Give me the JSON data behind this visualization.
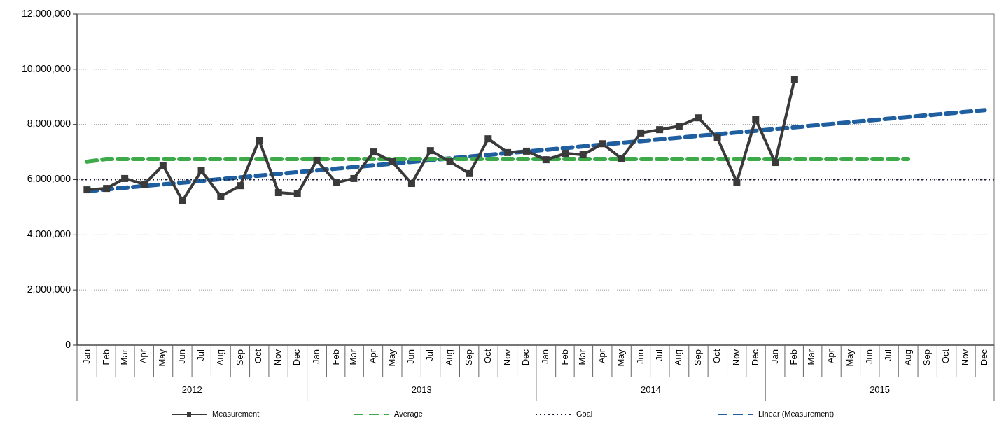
{
  "chart_data": {
    "type": "line",
    "x": [
      "2012-01",
      "2012-02",
      "2012-03",
      "2012-04",
      "2012-05",
      "2012-06",
      "2012-07",
      "2012-08",
      "2012-09",
      "2012-10",
      "2012-11",
      "2012-12",
      "2013-01",
      "2013-02",
      "2013-03",
      "2013-04",
      "2013-05",
      "2013-06",
      "2013-07",
      "2013-08",
      "2013-09",
      "2013-10",
      "2013-11",
      "2013-12",
      "2014-01",
      "2014-02",
      "2014-03",
      "2014-04",
      "2014-05",
      "2014-06",
      "2014-07",
      "2014-08",
      "2014-09",
      "2014-10",
      "2014-11",
      "2014-12",
      "2015-01",
      "2015-02"
    ],
    "series": [
      {
        "name": "Measurement",
        "color": "#3a3a3a",
        "marker": "square",
        "line_style": "solid",
        "values": [
          5630000,
          5680000,
          6040000,
          5830000,
          6520000,
          5230000,
          6320000,
          5400000,
          5780000,
          7430000,
          5530000,
          5480000,
          6700000,
          5890000,
          6040000,
          7000000,
          6650000,
          5860000,
          7050000,
          6650000,
          6220000,
          7480000,
          6980000,
          7030000,
          6720000,
          6950000,
          6900000,
          7300000,
          6770000,
          7690000,
          7810000,
          7940000,
          8240000,
          7510000,
          5910000,
          8190000,
          6620000,
          9640000
        ]
      },
      {
        "name": "Average",
        "color": "#3daa4a",
        "marker": "none",
        "line_style": "dashed",
        "x": [
          "2012-01",
          "2012-02",
          "2015-08"
        ],
        "values": [
          6650000,
          6750000,
          6750000
        ]
      },
      {
        "name": "Goal",
        "color": "#1a1a3a",
        "marker": "none",
        "line_style": "dotted",
        "x": [
          "2011-12-16",
          "2015-12-16"
        ],
        "values": [
          6000000,
          6000000
        ]
      },
      {
        "name": "Linear (Measurement)",
        "color": "#1f5fa0",
        "marker": "none",
        "line_style": "dashed",
        "x": [
          "2012-01",
          "2015-12"
        ],
        "values": [
          5580000,
          8520000
        ]
      }
    ],
    "xlim": [
      "2011-12-16",
      "2015-12-16"
    ],
    "xticks": [
      {
        "value": "2012-01",
        "label": "Jan"
      },
      {
        "value": "2012-02",
        "label": "Feb"
      },
      {
        "value": "2012-03",
        "label": "Mar"
      },
      {
        "value": "2012-04",
        "label": "Apr"
      },
      {
        "value": "2012-05",
        "label": "May"
      },
      {
        "value": "2012-06",
        "label": "Jun"
      },
      {
        "value": "2012-07",
        "label": "Jul"
      },
      {
        "value": "2012-08",
        "label": "Aug"
      },
      {
        "value": "2012-09",
        "label": "Sep"
      },
      {
        "value": "2012-10",
        "label": "Oct"
      },
      {
        "value": "2012-11",
        "label": "Nov"
      },
      {
        "value": "2012-12",
        "label": "Dec"
      },
      {
        "value": "2013-01",
        "label": "Jan"
      },
      {
        "value": "2013-02",
        "label": "Feb"
      },
      {
        "value": "2013-03",
        "label": "Mar"
      },
      {
        "value": "2013-04",
        "label": "Apr"
      },
      {
        "value": "2013-05",
        "label": "May"
      },
      {
        "value": "2013-06",
        "label": "Jun"
      },
      {
        "value": "2013-07",
        "label": "Jul"
      },
      {
        "value": "2013-08",
        "label": "Aug"
      },
      {
        "value": "2013-09",
        "label": "Sep"
      },
      {
        "value": "2013-10",
        "label": "Oct"
      },
      {
        "value": "2013-11",
        "label": "Nov"
      },
      {
        "value": "2013-12",
        "label": "Dec"
      },
      {
        "value": "2014-01",
        "label": "Jan"
      },
      {
        "value": "2014-02",
        "label": "Feb"
      },
      {
        "value": "2014-03",
        "label": "Mar"
      },
      {
        "value": "2014-04",
        "label": "Apr"
      },
      {
        "value": "2014-05",
        "label": "May"
      },
      {
        "value": "2014-06",
        "label": "Jun"
      },
      {
        "value": "2014-07",
        "label": "Jul"
      },
      {
        "value": "2014-08",
        "label": "Aug"
      },
      {
        "value": "2014-09",
        "label": "Sep"
      },
      {
        "value": "2014-10",
        "label": "Oct"
      },
      {
        "value": "2014-11",
        "label": "Nov"
      },
      {
        "value": "2014-12",
        "label": "Dec"
      },
      {
        "value": "2015-01",
        "label": "Jan"
      },
      {
        "value": "2015-02",
        "label": "Feb"
      },
      {
        "value": "2015-03",
        "label": "Mar"
      },
      {
        "value": "2015-04",
        "label": "Apr"
      },
      {
        "value": "2015-05",
        "label": "May"
      },
      {
        "value": "2015-06",
        "label": "Jun"
      },
      {
        "value": "2015-07",
        "label": "Jul"
      },
      {
        "value": "2015-08",
        "label": "Aug"
      },
      {
        "value": "2015-09",
        "label": "Sep"
      },
      {
        "value": "2015-10",
        "label": "Oct"
      },
      {
        "value": "2015-11",
        "label": "Nov"
      },
      {
        "value": "2015-12",
        "label": "Dec"
      }
    ],
    "ylim": [
      0,
      12000000
    ],
    "yticks": [
      {
        "value": 0,
        "label": "0"
      },
      {
        "value": 2000000,
        "label": "2,000,000"
      },
      {
        "value": 4000000,
        "label": "4,000,000"
      },
      {
        "value": 6000000,
        "label": "6,000,000"
      },
      {
        "value": 8000000,
        "label": "8,000,000"
      },
      {
        "value": 10000000,
        "label": "10,000,000"
      },
      {
        "value": 12000000,
        "label": "12,000,000"
      }
    ],
    "annotations": [
      "2012",
      "2013",
      "2014",
      "2015"
    ],
    "grid": "y",
    "legend": "bottom"
  }
}
